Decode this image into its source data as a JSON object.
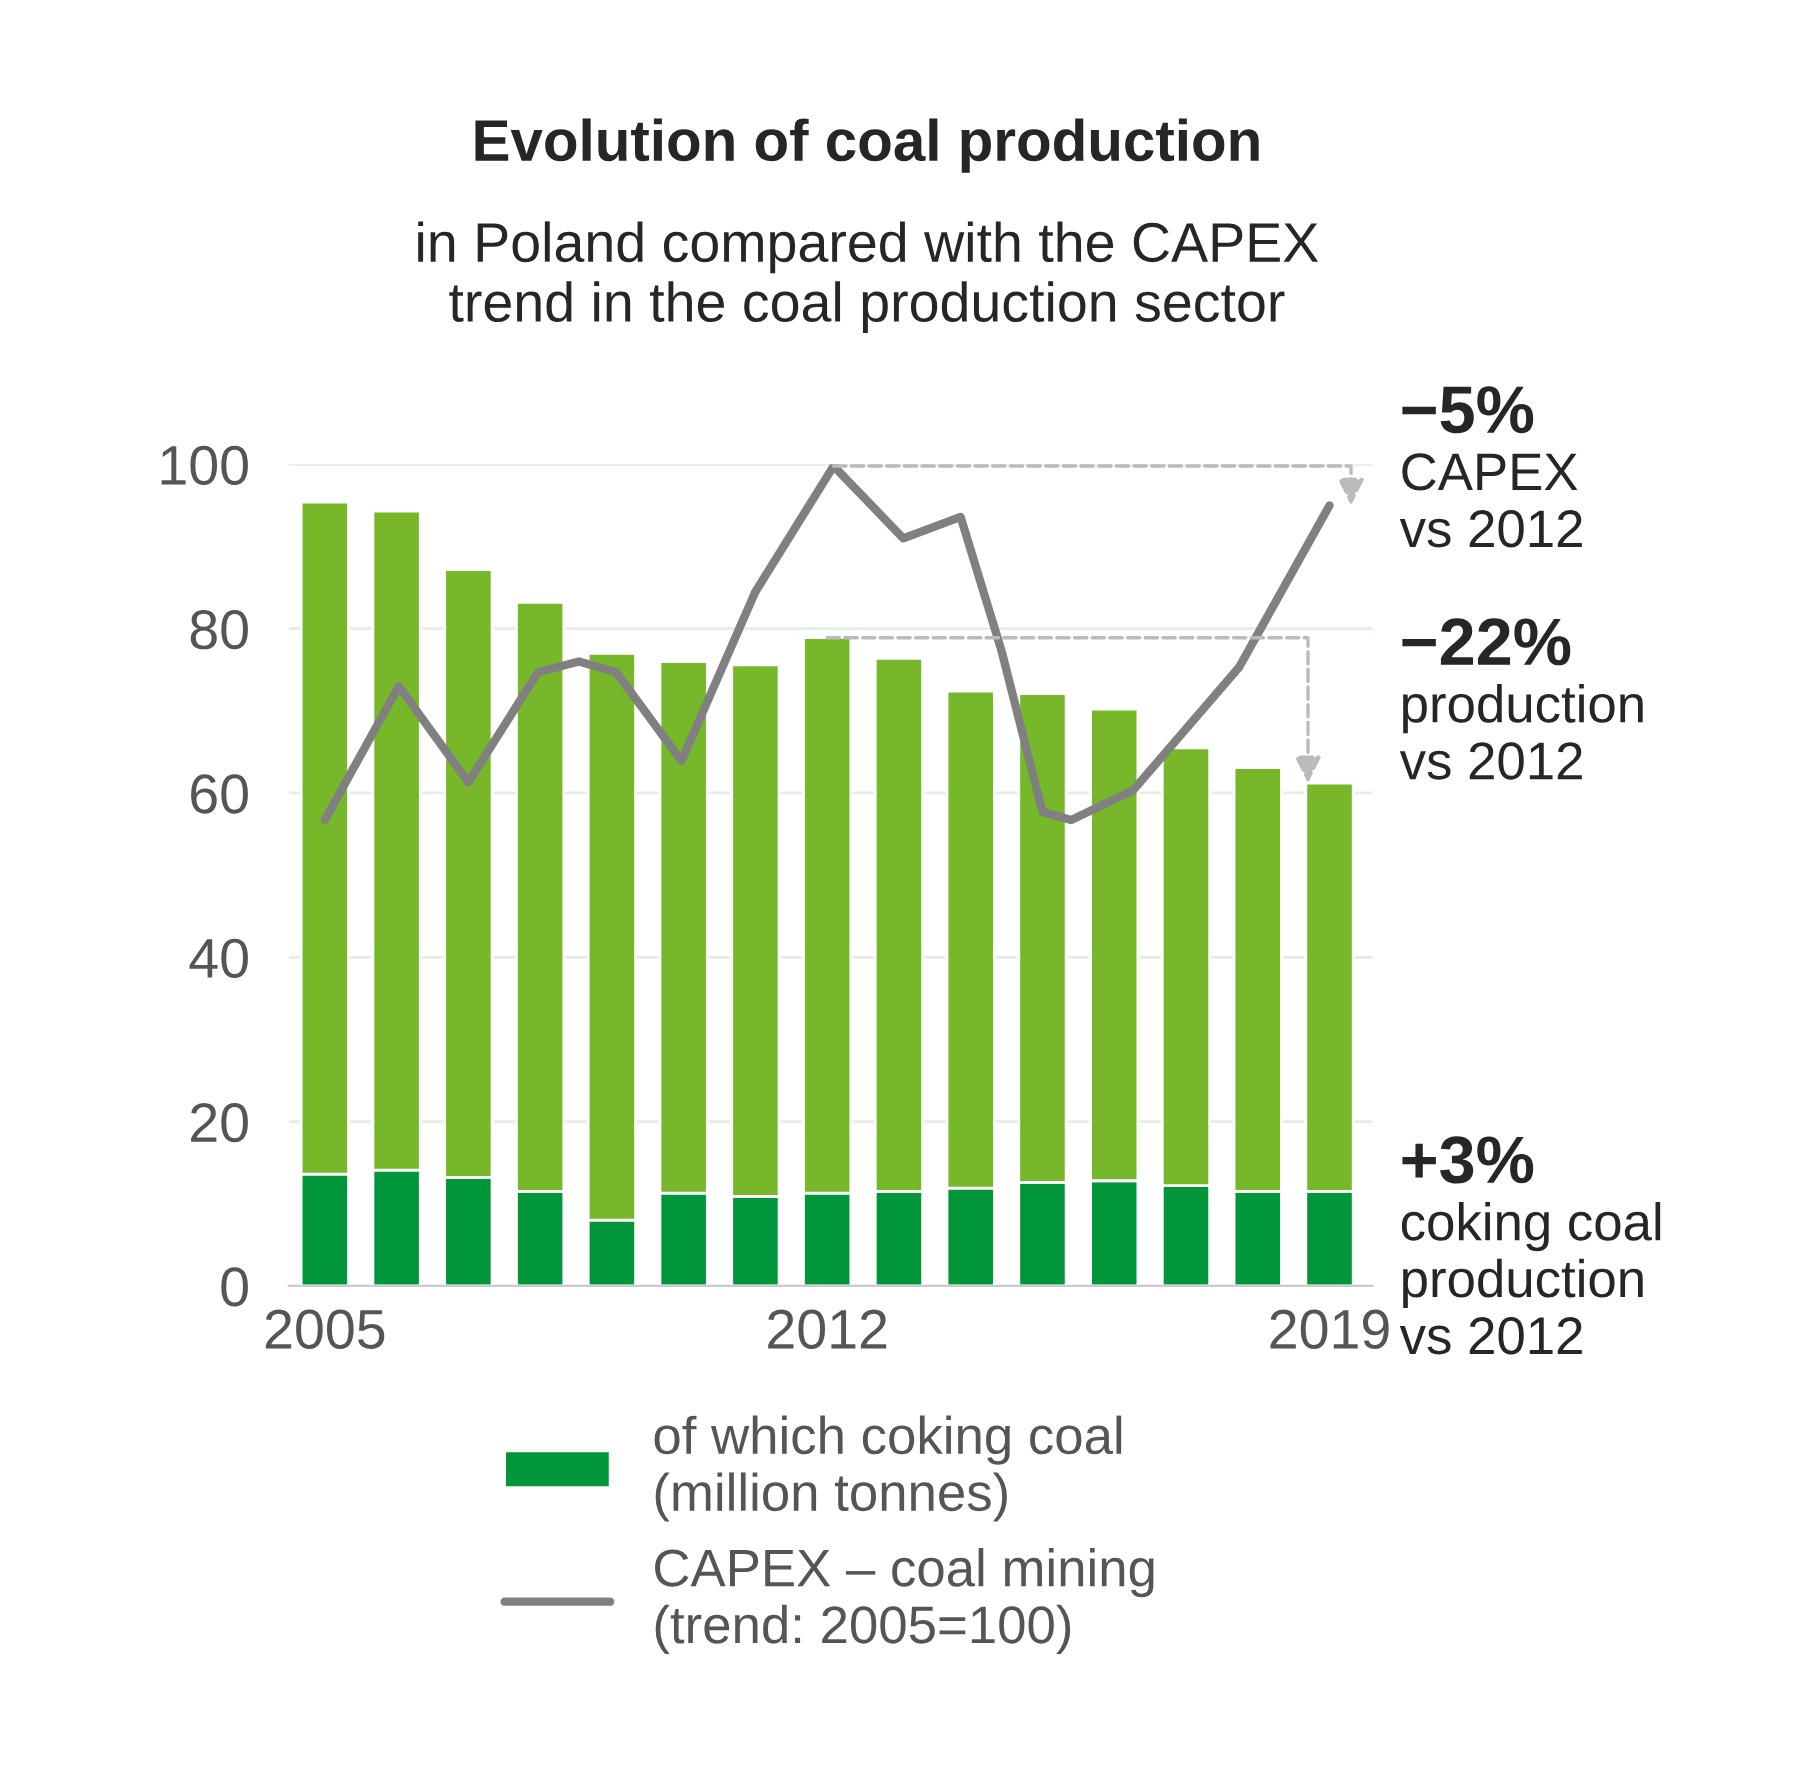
{
  "chart_data": {
    "type": "bar",
    "stacked": true,
    "title": "Evolution of coal production",
    "subtitle": "in Poland compared with the CAPEX\ntrend in the coal production sector",
    "x": [
      2005,
      2006,
      2007,
      2008,
      2009,
      2010,
      2011,
      2012,
      2013,
      2014,
      2015,
      2016,
      2017,
      2018,
      2019
    ],
    "series": [
      {
        "name": "of which coking coal\n(million tonnes)",
        "color": "#009639",
        "values": [
          13.6,
          14.1,
          13.2,
          11.5,
          8.0,
          11.3,
          10.9,
          11.3,
          11.5,
          11.9,
          12.6,
          12.8,
          12.2,
          11.5,
          11.5
        ]
      },
      {
        "color": "#76b82a",
        "values": [
          81.8,
          80.2,
          74.0,
          71.7,
          69.0,
          64.7,
          64.7,
          67.6,
          64.9,
          60.5,
          59.5,
          57.4,
          53.3,
          51.6,
          49.7
        ]
      },
      {
        "name": "CAPEX – coal mining\n(trend: 2005=100)",
        "type": "line",
        "color": "#808080",
        "x": [
          2005,
          2006.03,
          2007,
          2007.97,
          2008.54,
          2009.06,
          2009.97,
          2011,
          2012.09,
          2013.06,
          2013.86,
          2014.43,
          2015,
          2015.4,
          2016.26,
          2017.74,
          2019
        ],
        "values": [
          56.7,
          73.0,
          61.3,
          74.7,
          76,
          74.7,
          63.9,
          84.5,
          99.8,
          91,
          93.6,
          77.3,
          57.7,
          56.7,
          60.3,
          75.3,
          95
        ]
      }
    ],
    "xlim": [
      2004.5,
      2019.6
    ],
    "xticks": [
      2005,
      2012,
      2019
    ],
    "ylim": [
      0,
      100
    ],
    "yticks": [
      0,
      20,
      40,
      60,
      80,
      100
    ],
    "grid": "y",
    "legend": "bottom",
    "annotations": [
      "−5%\nCAPEX\nvs 2012",
      "−22%\nproduction\nvs 2012",
      "+3%\ncoking coal\nproduction\nvs 2012"
    ]
  }
}
